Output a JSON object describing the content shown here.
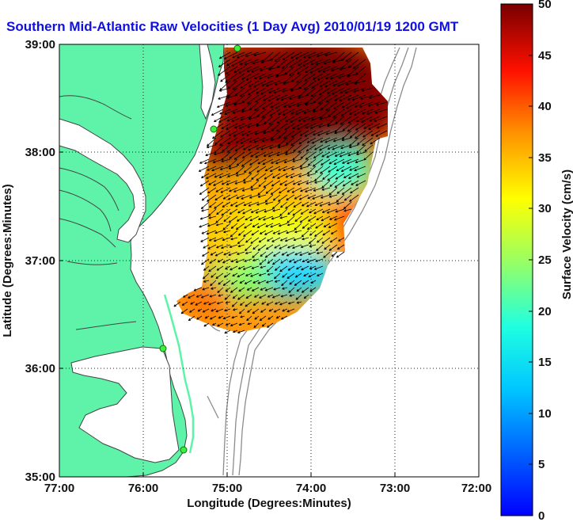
{
  "title": "Southern Mid-Atlantic Raw Velocities (1 Day Avg) 2010/01/19 1200 GMT",
  "x_axis": {
    "label": "Longitude (Degrees:Minutes)",
    "ticks": [
      "77:00",
      "76:00",
      "75:00",
      "74:00",
      "73:00",
      "72:00"
    ]
  },
  "y_axis": {
    "label": "Latitude (Degrees:Minutes)",
    "ticks": [
      "39:00",
      "38:00",
      "37:00",
      "36:00",
      "35:00"
    ]
  },
  "colorbar": {
    "label": "Surface Velocity (cm/s)",
    "ticks": [
      "50",
      "45",
      "40",
      "35",
      "30",
      "25",
      "20",
      "15",
      "10",
      "5",
      "0"
    ],
    "range": [
      0,
      50
    ],
    "colormap": "jet"
  },
  "map": {
    "lon_range": [
      -77,
      -72
    ],
    "lat_range": [
      35,
      39
    ],
    "land_color": "#5ef3a8",
    "water_color": "#ffffff",
    "coast_color": "#444444",
    "bathymetry_color": "#8c8c8c",
    "grid": "dotted",
    "stations": [
      "station-1",
      "station-2",
      "station-3",
      "station-4"
    ]
  },
  "chart_data": {
    "type": "heatmap",
    "title": "Southern Mid-Atlantic Raw Velocities (1 Day Avg) 2010/01/19 1200 GMT",
    "xlabel": "Longitude (Degrees:Minutes)",
    "ylabel": "Latitude (Degrees:Minutes)",
    "xlim": [
      -77,
      -72
    ],
    "ylim": [
      35,
      39
    ],
    "colorbar_label": "Surface Velocity (cm/s)",
    "clim": [
      0,
      50
    ],
    "stations": [
      {
        "lon": -74.88,
        "lat": 38.96
      },
      {
        "lon": -75.16,
        "lat": 38.22
      },
      {
        "lon": -75.77,
        "lat": 36.18
      },
      {
        "lon": -75.52,
        "lat": 35.26
      }
    ],
    "zones": [
      {
        "region": "north-offshore (38.2-38.9N, 74.6-73.0W)",
        "speed_cm_s": 47
      },
      {
        "region": "north-nearshore (38.5-38.9N, 75.0-74.6W)",
        "speed_cm_s": 45
      },
      {
        "region": "central (37.6-38.1N, 74.7-73.6W)",
        "speed_cm_s": 30
      },
      {
        "region": "mid (37.3-37.6N, 74.8-73.8W)",
        "speed_cm_s": 25
      },
      {
        "region": "south (36.8-37.2N, 74.6-74.0W)",
        "speed_cm_s": 12
      },
      {
        "region": "southwest (36.7-37.0N, 75.4-74.8W)",
        "speed_cm_s": 20
      },
      {
        "region": "southwest-edge (36.6-36.8N, 75.6-75.3W)",
        "speed_cm_s": 40
      },
      {
        "region": "east-edge (37.4-38.2N, 73.6-73.4W)",
        "speed_cm_s": 38
      }
    ],
    "flow_direction": "southwestward"
  }
}
